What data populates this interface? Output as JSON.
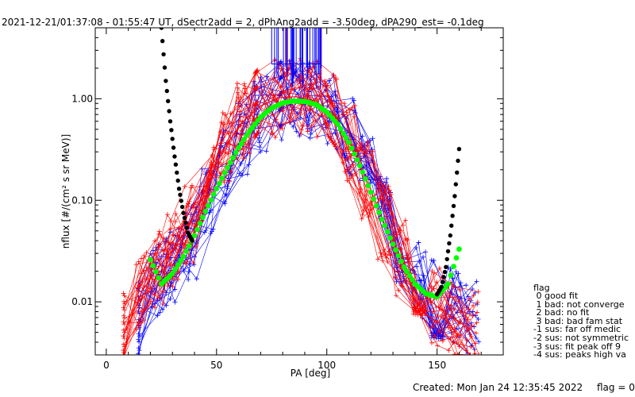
{
  "title": "2021-12-21/01:37:08 - 01:55:47 UT, dSectr2add = 2, dPhAng2add = -3.50deg, dPA290_est=  -0.1deg",
  "chart_data": {
    "type": "scatter",
    "xlabel": "PA [deg]",
    "ylabel": "nflux [#/(cm² s sr MeV)]",
    "xlim": [
      -5,
      180
    ],
    "ylim": [
      0.003,
      5.0
    ],
    "yscale": "log",
    "xticks": [
      0,
      50,
      100,
      150
    ],
    "xtick_labels": [
      "0",
      "50",
      "100",
      "150"
    ],
    "yticks": [
      0.01,
      0.1,
      1.0
    ],
    "ytick_labels": [
      "0.01",
      "0.10",
      "1.00"
    ],
    "colors": {
      "red": "#ff0000",
      "blue": "#0000ff",
      "green": "#00ff00",
      "black": "#000000"
    },
    "series": [
      {
        "color": "#0000ff",
        "points": [
          [
            16,
            0.0064
          ],
          [
            23,
            0.017
          ],
          [
            30,
            0.022
          ],
          [
            38,
            0.037
          ],
          [
            46,
            0.085
          ],
          [
            54,
            0.21
          ],
          [
            62,
            0.42
          ],
          [
            70,
            0.72
          ],
          [
            78,
            0.95
          ],
          [
            86,
            1.02
          ],
          [
            94,
            0.98
          ],
          [
            102,
            0.78
          ],
          [
            110,
            0.41
          ],
          [
            118,
            0.18
          ],
          [
            126,
            0.072
          ],
          [
            134,
            0.031
          ],
          [
            142,
            0.016
          ],
          [
            150,
            0.0105
          ],
          [
            158,
            0.0092
          ],
          [
            166,
            0.0068
          ]
        ]
      },
      {
        "color": "#ff0000",
        "points": [
          [
            9,
            0.0052
          ],
          [
            16,
            0.0125
          ],
          [
            23,
            0.021
          ],
          [
            30,
            0.032
          ],
          [
            38,
            0.058
          ],
          [
            46,
            0.15
          ],
          [
            54,
            0.34
          ],
          [
            62,
            0.6
          ],
          [
            70,
            0.85
          ],
          [
            78,
            1.02
          ],
          [
            86,
            1.05
          ],
          [
            94,
            0.96
          ],
          [
            102,
            0.72
          ],
          [
            110,
            0.38
          ],
          [
            118,
            0.16
          ],
          [
            126,
            0.06
          ],
          [
            134,
            0.026
          ],
          [
            142,
            0.013
          ],
          [
            150,
            0.009
          ],
          [
            158,
            0.0068
          ],
          [
            166,
            0.0052
          ]
        ]
      },
      {
        "color": "#00ff00",
        "points": [
          [
            20,
            0.026
          ],
          [
            25,
            0.015
          ],
          [
            30,
            0.019
          ],
          [
            35,
            0.028
          ],
          [
            40,
            0.045
          ],
          [
            45,
            0.078
          ],
          [
            50,
            0.13
          ],
          [
            55,
            0.21
          ],
          [
            60,
            0.33
          ],
          [
            65,
            0.48
          ],
          [
            70,
            0.66
          ],
          [
            75,
            0.81
          ],
          [
            80,
            0.91
          ],
          [
            85,
            0.95
          ],
          [
            90,
            0.94
          ],
          [
            95,
            0.88
          ],
          [
            100,
            0.74
          ],
          [
            105,
            0.56
          ],
          [
            110,
            0.37
          ],
          [
            115,
            0.22
          ],
          [
            120,
            0.12
          ],
          [
            125,
            0.065
          ],
          [
            130,
            0.037
          ],
          [
            135,
            0.022
          ],
          [
            140,
            0.015
          ],
          [
            145,
            0.012
          ],
          [
            150,
            0.0112
          ],
          [
            155,
            0.015
          ],
          [
            160,
            0.033
          ]
        ]
      },
      {
        "color": "#000000",
        "points": [
          [
            25,
            5.0
          ],
          [
            27,
            1.5
          ],
          [
            29,
            0.6
          ],
          [
            31,
            0.27
          ],
          [
            33,
            0.13
          ],
          [
            35,
            0.075
          ],
          [
            37,
            0.048
          ],
          [
            39,
            0.04
          ],
          [
            150,
            0.0118
          ],
          [
            152,
            0.014
          ],
          [
            154,
            0.022
          ],
          [
            156,
            0.045
          ],
          [
            158,
            0.11
          ],
          [
            160,
            0.32
          ]
        ]
      }
    ]
  },
  "legend": {
    "title": "flag",
    "items": [
      " 0 good fit",
      " 1 bad: not converge",
      " 2 bad: no fit",
      " 3 bad: bad fam stat",
      "-1 sus: far off medic",
      "-2 sus: not symmetric",
      "-3 sus: fit peak off 9",
      "-4 sus: peaks high va"
    ]
  },
  "footer": {
    "created": "Created: Mon Jan 24 12:35:45 2022",
    "flag": "flag = 0"
  }
}
